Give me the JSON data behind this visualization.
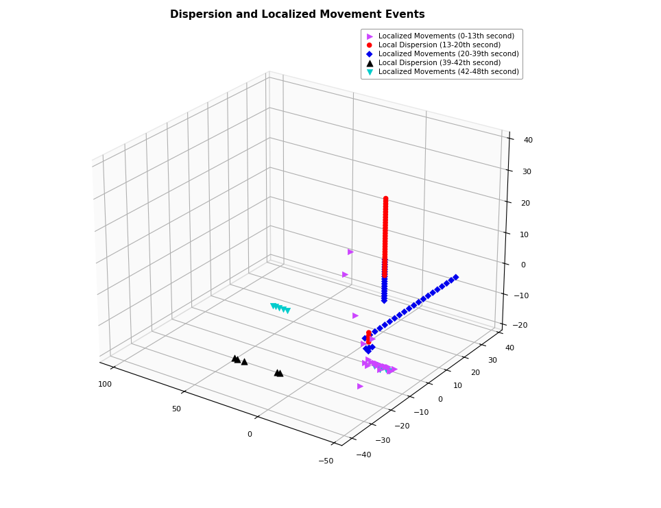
{
  "title": "Dispersion and Localized Movement Events",
  "series": [
    {
      "label": "Localized Movements (0-13th second)",
      "color": "#CC44FF",
      "marker": ">",
      "size": 35
    },
    {
      "label": "Local Dispersion (13-20th second)",
      "color": "#FF0000",
      "marker": "o",
      "size": 30
    },
    {
      "label": "Localized Movements (20-39th second)",
      "color": "#0000EE",
      "marker": "D",
      "size": 25
    },
    {
      "label": "Local Dispersion (39-42th second)",
      "color": "#000000",
      "marker": "^",
      "size": 45
    },
    {
      "label": "Localized Movements (42-48th second)",
      "color": "#00CCCC",
      "marker": "v",
      "size": 35
    }
  ],
  "title_fontsize": 11,
  "background_color": "#ffffff",
  "legend_fontsize": 7.5
}
